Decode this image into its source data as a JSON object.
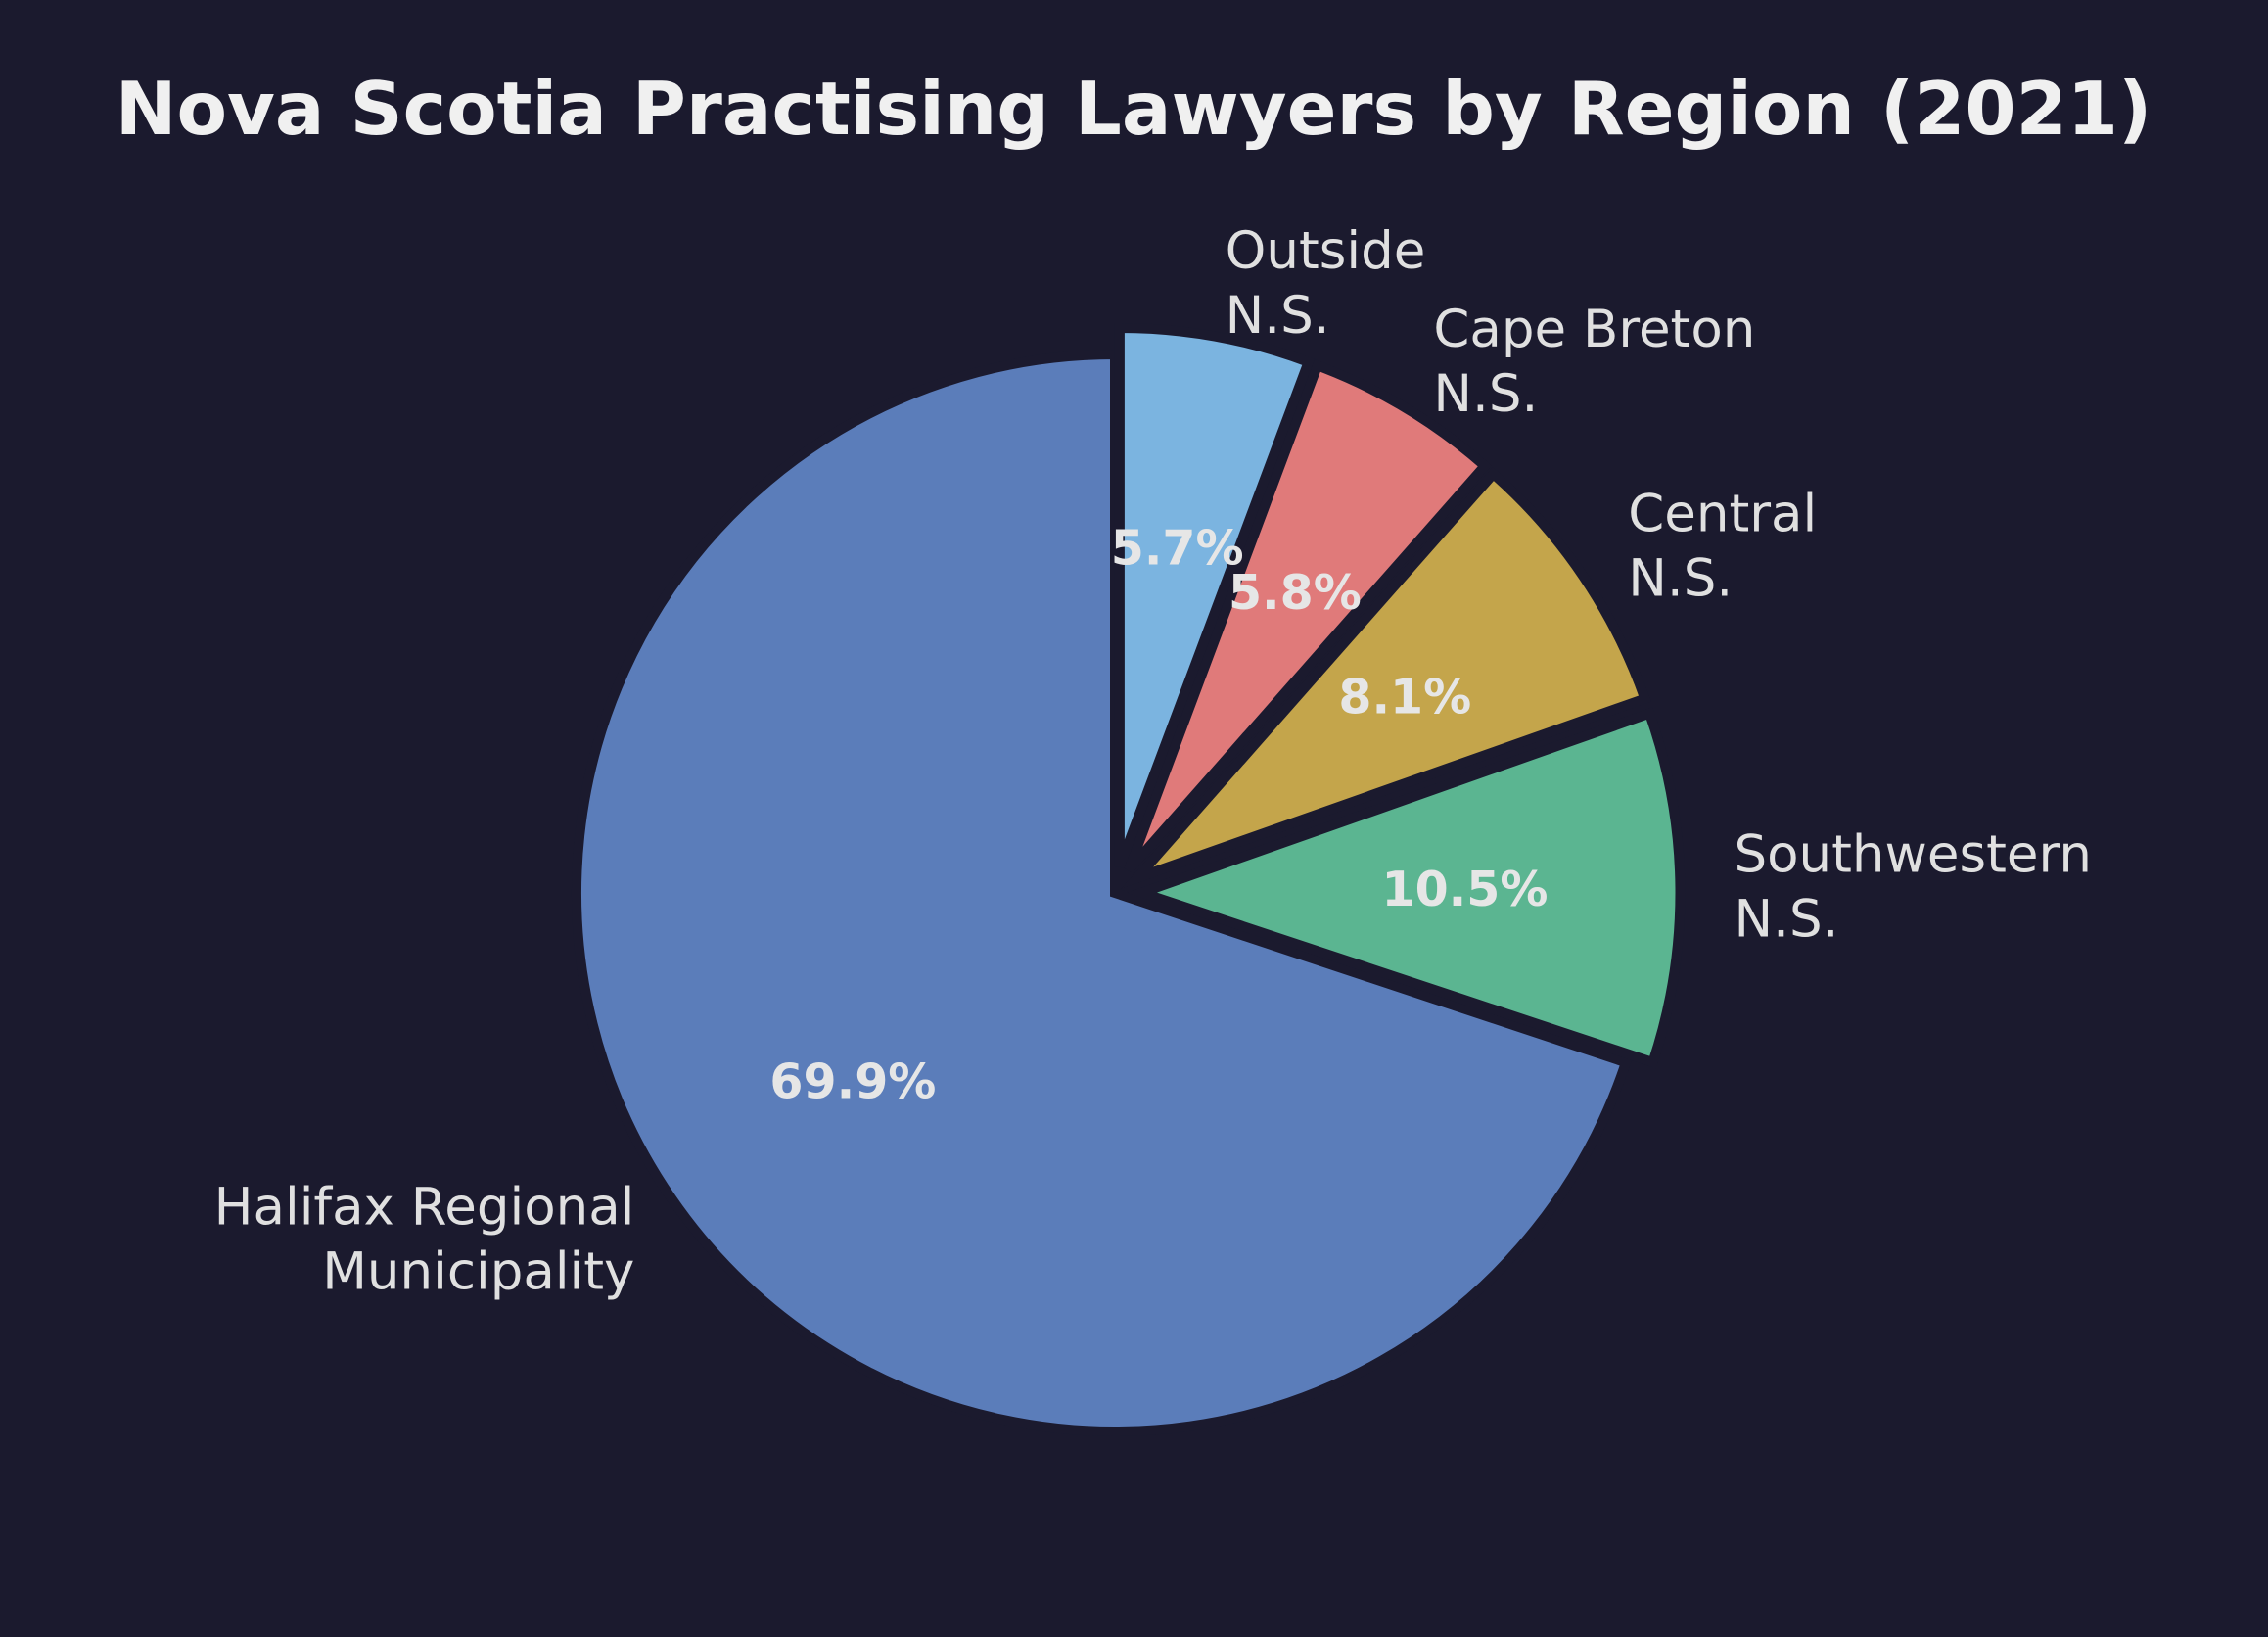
{
  "chart_data": {
    "type": "pie",
    "title": "Nova Scotia Practising Lawyers by Region (2021)",
    "start_angle": 90,
    "direction": "counterclockwise",
    "slices": [
      {
        "label": [
          "Halifax Regional",
          "Municipality"
        ],
        "value": 69.9,
        "pct_label": "69.9%",
        "color": "#5b7dba",
        "exploded": false
      },
      {
        "label": [
          "Southwestern",
          "N.S."
        ],
        "value": 10.5,
        "pct_label": "10.5%",
        "color": "#5bb591",
        "exploded": true
      },
      {
        "label": [
          "Central",
          "N.S."
        ],
        "value": 8.1,
        "pct_label": "8.1%",
        "color": "#c4a54b",
        "exploded": true
      },
      {
        "label": [
          "Cape Breton",
          "N.S."
        ],
        "value": 5.8,
        "pct_label": "5.8%",
        "color": "#e07a7a",
        "exploded": true
      },
      {
        "label": [
          "Outside",
          "N.S."
        ],
        "value": 5.7,
        "pct_label": "5.7%",
        "color": "#7bb4e0",
        "exploded": true
      }
    ],
    "background": "#1b1a2e",
    "edge_color": "#1b1a2e"
  }
}
